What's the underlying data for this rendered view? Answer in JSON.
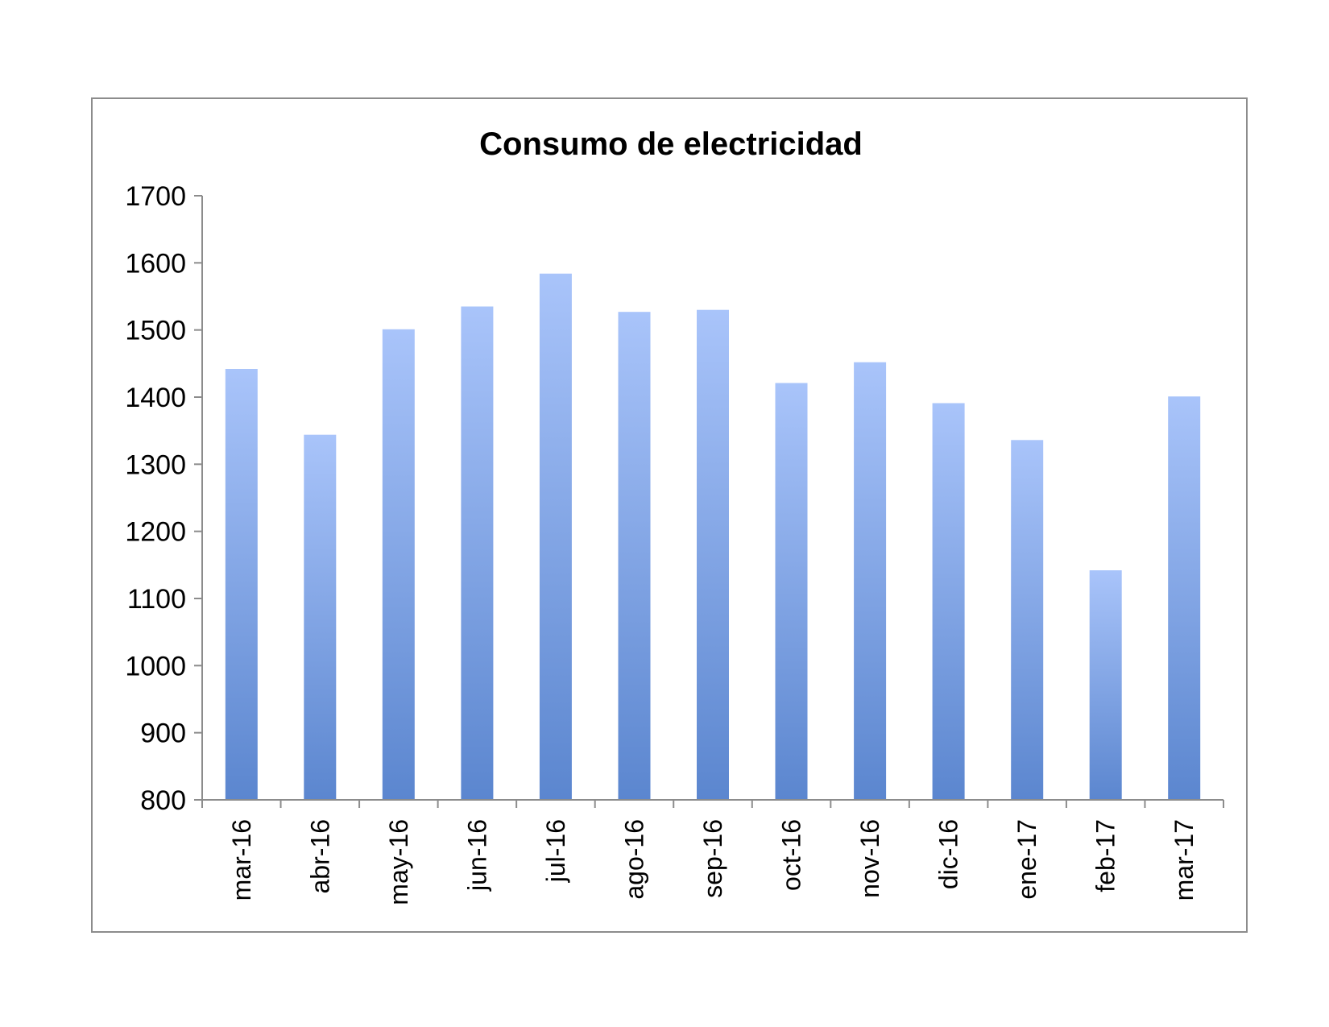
{
  "chart_data": {
    "type": "bar",
    "title": "Consumo de electricidad",
    "xlabel": "",
    "ylabel": "",
    "categories": [
      "mar-16",
      "abr-16",
      "may-16",
      "jun-16",
      "jul-16",
      "ago-16",
      "sep-16",
      "oct-16",
      "nov-16",
      "dic-16",
      "ene-17",
      "feb-17",
      "mar-17"
    ],
    "values": [
      1442,
      1344,
      1501,
      1535,
      1584,
      1527,
      1530,
      1421,
      1452,
      1391,
      1336,
      1142,
      1401
    ],
    "ylim": [
      800,
      1700
    ],
    "yticks": [
      800,
      900,
      1000,
      1100,
      1200,
      1300,
      1400,
      1500,
      1600,
      1700
    ],
    "grid": false,
    "legend": "none",
    "bar_color_top": "#a9c4fa",
    "bar_color_bottom": "#5b86cf",
    "axis_color": "#8c8c8c"
  }
}
